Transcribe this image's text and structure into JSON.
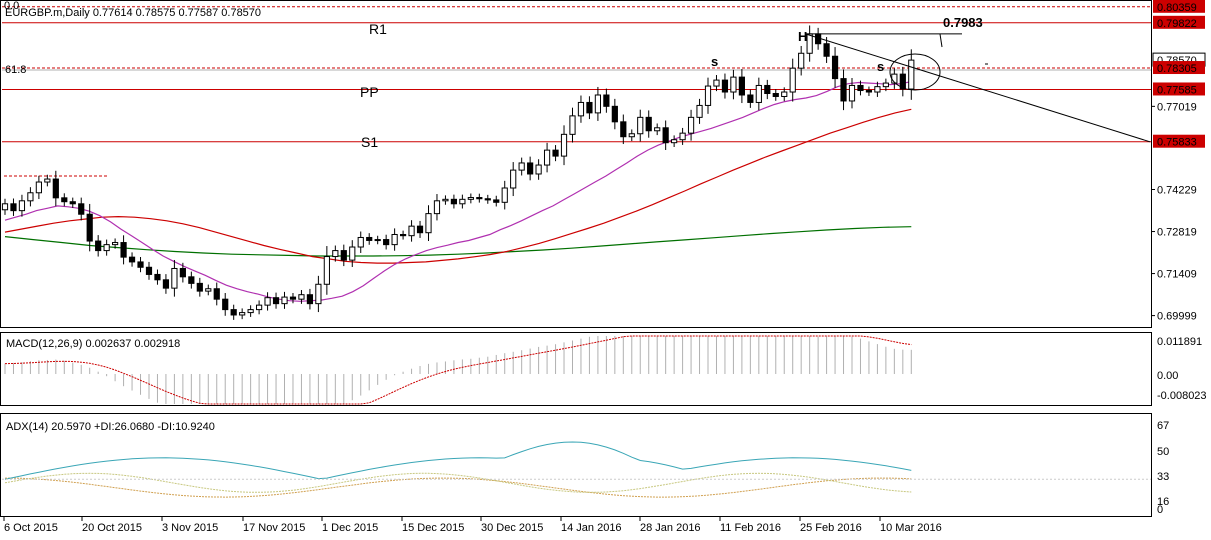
{
  "header": {
    "symbol_line": "EURGBP.m,Daily  0.77614 0.78575 0.77587 0.78570",
    "top_fib": "0.0",
    "fib_label": "61.8"
  },
  "annotations": {
    "r1": "R1",
    "pp": "PP",
    "s1": "S1",
    "head": "H",
    "shoulder_left": "s",
    "shoulder_right": "s",
    "target": "0.7983"
  },
  "colors": {
    "bull": "#ffffff",
    "bear": "#000000",
    "sma_fast": "#b030b0",
    "sma_mid": "#cc0000",
    "sma_slow": "#007000",
    "level_line": "#cc0000",
    "macd_bar": "#b0b0b0",
    "macd_signal": "#cc0000",
    "adx_main": "#3aa6b6",
    "adx_plus": "#c8c880",
    "adx_minus": "#d0a050"
  },
  "macd": {
    "title": "MACD(12,26,9) 0.002637 0.002918",
    "ticks": [
      "0.011891",
      "0.00",
      "-0.008023"
    ]
  },
  "adx": {
    "title": "ADX(14) 20.5970 +DI:26.0680 -DI:10.9240",
    "ticks": [
      "67",
      "50",
      "33",
      "16",
      "0"
    ]
  },
  "chart_data": {
    "type": "candlestick",
    "y_ticks": [
      "0.80359",
      "0.79822",
      "0.78570",
      "0.78305",
      "0.77585",
      "0.77019",
      "0.75833",
      "0.74229",
      "0.72819",
      "0.71409",
      "0.69999"
    ],
    "ylim": [
      0.6965,
      0.8052
    ],
    "x_labels": [
      "6 Oct 2015",
      "20 Oct 2015",
      "3 Nov 2015",
      "17 Nov 2015",
      "1 Dec 2015",
      "15 Dec 2015",
      "30 Dec 2015",
      "14 Jan 2016",
      "28 Jan 2016",
      "11 Feb 2016",
      "25 Feb 2016",
      "10 Mar 2016"
    ],
    "levels": [
      {
        "name": "R1",
        "value": 0.79822
      },
      {
        "name": "PP",
        "value": 0.77585
      },
      {
        "name": "S1",
        "value": 0.75833
      },
      {
        "name": "upper",
        "value": 0.80359
      },
      {
        "name": "mid",
        "value": 0.78305
      }
    ],
    "closes": [
      0.7375,
      0.7352,
      0.7385,
      0.7412,
      0.7448,
      0.7458,
      0.7395,
      0.7382,
      0.7375,
      0.734,
      0.725,
      0.7218,
      0.7238,
      0.7245,
      0.7196,
      0.718,
      0.7162,
      0.7138,
      0.712,
      0.7092,
      0.7158,
      0.713,
      0.7108,
      0.7082,
      0.709,
      0.7055,
      0.702,
      0.7002,
      0.701,
      0.702,
      0.7035,
      0.706,
      0.704,
      0.7062,
      0.7055,
      0.707,
      0.704,
      0.7105,
      0.7198,
      0.7218,
      0.7186,
      0.723,
      0.7262,
      0.7252,
      0.7255,
      0.7238,
      0.7272,
      0.7268,
      0.73,
      0.7278,
      0.7342,
      0.7385,
      0.739,
      0.7375,
      0.739,
      0.7396,
      0.7392,
      0.7388,
      0.738,
      0.7428,
      0.7488,
      0.7512,
      0.7475,
      0.7505,
      0.7555,
      0.7535,
      0.7608,
      0.767,
      0.7715,
      0.768,
      0.774,
      0.7702,
      0.765,
      0.76,
      0.761,
      0.7665,
      0.762,
      0.763,
      0.758,
      0.759,
      0.7612,
      0.7665,
      0.7705,
      0.777,
      0.779,
      0.775,
      0.78,
      0.774,
      0.7715,
      0.7772,
      0.7745,
      0.7735,
      0.775,
      0.783,
      0.788,
      0.7945,
      0.7912,
      0.787,
      0.7795,
      0.772,
      0.7772,
      0.7755,
      0.775,
      0.7768,
      0.778,
      0.781,
      0.776,
      0.7857
    ],
    "sma_fast": [
      0.732,
      0.733,
      0.734,
      0.7352,
      0.736,
      0.7368,
      0.7365,
      0.736,
      0.735,
      0.7335,
      0.7315,
      0.729,
      0.7268,
      0.7245,
      0.7222,
      0.72,
      0.7182,
      0.7165,
      0.715,
      0.7135,
      0.7118,
      0.7102,
      0.709,
      0.708,
      0.7072,
      0.7062,
      0.7055,
      0.705,
      0.7048,
      0.705,
      0.7052,
      0.7058,
      0.7065,
      0.708,
      0.71,
      0.7125,
      0.715,
      0.7172,
      0.719,
      0.7205,
      0.7218,
      0.7228,
      0.7236,
      0.7245,
      0.7252,
      0.7262,
      0.7272,
      0.7288,
      0.7302,
      0.7318,
      0.7335,
      0.7352,
      0.7368,
      0.7388,
      0.7408,
      0.7428,
      0.7448,
      0.7468,
      0.749,
      0.7512,
      0.7535,
      0.7555,
      0.7572,
      0.7585,
      0.7598,
      0.7608,
      0.7618,
      0.7628,
      0.764,
      0.7652,
      0.7665,
      0.768,
      0.7695,
      0.7708,
      0.7718,
      0.7725,
      0.773,
      0.7738,
      0.7752,
      0.7768,
      0.7778,
      0.7782,
      0.778,
      0.7778,
      0.7775,
      0.7778,
      0.7785
    ],
    "sma_mid": [
      0.728,
      0.729,
      0.73,
      0.731,
      0.7318,
      0.7324,
      0.733,
      0.7332,
      0.733,
      0.7325,
      0.7318,
      0.7308,
      0.7295,
      0.728,
      0.7265,
      0.725,
      0.7235,
      0.7222,
      0.721,
      0.7198,
      0.719,
      0.7182,
      0.7178,
      0.7176,
      0.7176,
      0.7178,
      0.718,
      0.7185,
      0.719,
      0.7197,
      0.7205,
      0.7215,
      0.7228,
      0.7242,
      0.7258,
      0.7275,
      0.7292,
      0.731,
      0.733,
      0.735,
      0.7372,
      0.7395,
      0.7418,
      0.7442,
      0.7465,
      0.7488,
      0.751,
      0.7532,
      0.7552,
      0.7572,
      0.7592,
      0.7612,
      0.763,
      0.7648,
      0.7665,
      0.768,
      0.7692
    ],
    "sma_slow": [
      0.7265,
      0.7255,
      0.7245,
      0.7235,
      0.7228,
      0.7221,
      0.7215,
      0.721,
      0.7206,
      0.7204,
      0.7202,
      0.72,
      0.72,
      0.72,
      0.7201,
      0.7203,
      0.7206,
      0.721,
      0.7215,
      0.722,
      0.7226,
      0.7233,
      0.724,
      0.7247,
      0.7254,
      0.7261,
      0.7268,
      0.7275,
      0.7281,
      0.7287,
      0.7292,
      0.7296,
      0.7298
    ]
  }
}
